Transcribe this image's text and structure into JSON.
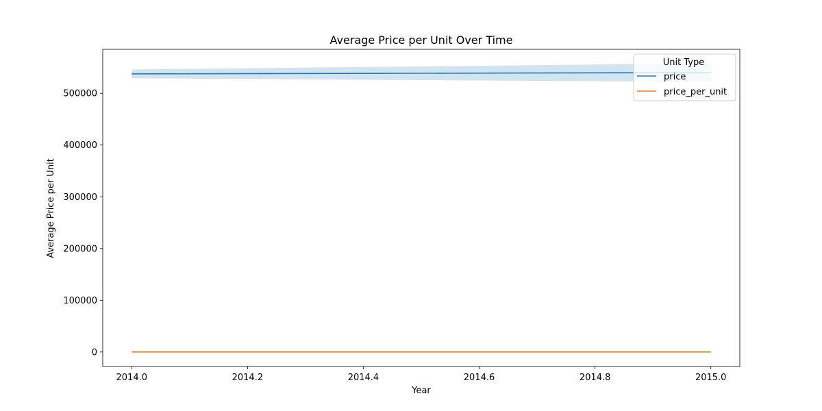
{
  "chart_data": {
    "type": "line",
    "title": "Average Price per Unit Over Time",
    "xlabel": "Year",
    "ylabel": "Average Price per Unit",
    "xlim": [
      2013.95,
      2015.05
    ],
    "ylim": [
      -28000,
      585000
    ],
    "xticks": [
      2014.0,
      2014.2,
      2014.4,
      2014.6,
      2014.8,
      2015.0
    ],
    "xtick_labels": [
      "2014.0",
      "2014.2",
      "2014.4",
      "2014.6",
      "2014.8",
      "2015.0"
    ],
    "yticks": [
      0,
      100000,
      200000,
      300000,
      400000,
      500000
    ],
    "ytick_labels": [
      "0",
      "100000",
      "200000",
      "300000",
      "400000",
      "500000"
    ],
    "grid": false,
    "legend": {
      "title": "Unit Type",
      "placement": "top-right"
    },
    "series": [
      {
        "name": "price",
        "color": "#1f77b4",
        "x": [
          2014.0,
          2015.0
        ],
        "y": [
          537500,
          540000
        ],
        "ci_low": [
          529000,
          522000
        ],
        "ci_high": [
          546000,
          558000
        ]
      },
      {
        "name": "price_per_unit",
        "color": "#ff7f0e",
        "x": [
          2014.0,
          2015.0
        ],
        "y": [
          100,
          100
        ]
      }
    ]
  }
}
